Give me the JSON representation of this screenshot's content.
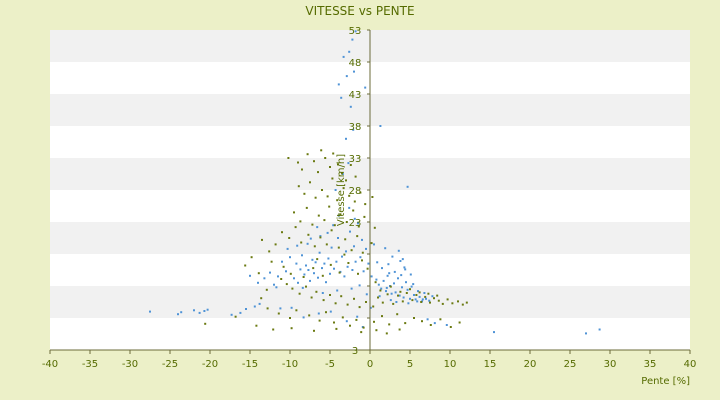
{
  "chart_data": {
    "type": "scatter",
    "title": "VITESSE vs PENTE",
    "xlabel": "Pente [%]",
    "ylabel": "Vitesse [km/h]",
    "xlim": [
      -40,
      40
    ],
    "ylim": [
      3,
      53
    ],
    "x_ticks": [
      -40,
      -35,
      -30,
      -25,
      -20,
      -15,
      -10,
      -5,
      0,
      5,
      10,
      15,
      20,
      25,
      30,
      35,
      40
    ],
    "y_ticks": [
      3,
      8,
      13,
      18,
      23,
      28,
      33,
      38,
      43,
      48,
      53
    ],
    "y_tick_labels": [
      "3",
      "",
      "",
      "",
      "23",
      "28",
      "33",
      "38",
      "43",
      "48",
      "53"
    ],
    "grid": "horizontal alternating bands",
    "legend": "none",
    "series": [
      {
        "color": "#4f93d6",
        "points": [
          [
            -27.5,
            9.0
          ],
          [
            -24.0,
            8.6
          ],
          [
            -23.6,
            8.9
          ],
          [
            -22.0,
            9.2
          ],
          [
            -21.3,
            8.8
          ],
          [
            -20.7,
            9.1
          ],
          [
            -20.3,
            9.3
          ],
          [
            -17.3,
            8.5
          ],
          [
            -16.2,
            8.8
          ],
          [
            -15.5,
            9.4
          ],
          [
            -14.4,
            9.8
          ],
          [
            -13.8,
            10.2
          ],
          [
            -11.2,
            9.5
          ],
          [
            -9.8,
            9.6
          ],
          [
            -15.0,
            14.6
          ],
          [
            -14.0,
            13.5
          ],
          [
            -13.2,
            14.2
          ],
          [
            -12.5,
            15.1
          ],
          [
            -12.0,
            13.2
          ],
          [
            -11.5,
            14.5
          ],
          [
            -11.0,
            16.8
          ],
          [
            -10.5,
            15.3
          ],
          [
            -10.0,
            17.5
          ],
          [
            -9.5,
            14.2
          ],
          [
            -9.2,
            16.5
          ],
          [
            -9.0,
            13.5
          ],
          [
            -8.7,
            15.6
          ],
          [
            -8.5,
            17.8
          ],
          [
            -8.2,
            14.8
          ],
          [
            -8.0,
            16.2
          ],
          [
            -7.7,
            15.5
          ],
          [
            -7.5,
            13.8
          ],
          [
            -7.2,
            17.1
          ],
          [
            -7.0,
            15.0
          ],
          [
            -6.8,
            16.7
          ],
          [
            -6.5,
            14.3
          ],
          [
            -6.3,
            18.2
          ],
          [
            -6.0,
            15.8
          ],
          [
            -5.7,
            16.5
          ],
          [
            -5.5,
            13.6
          ],
          [
            -5.2,
            17.3
          ],
          [
            -5.0,
            14.9
          ],
          [
            -4.8,
            19.0
          ],
          [
            -4.5,
            15.7
          ],
          [
            -4.2,
            16.8
          ],
          [
            -4.0,
            20.5
          ],
          [
            -3.7,
            15.2
          ],
          [
            -3.5,
            17.6
          ],
          [
            -3.2,
            14.5
          ],
          [
            -3.0,
            18.4
          ],
          [
            -2.8,
            16.0
          ],
          [
            -2.5,
            21.5
          ],
          [
            -2.2,
            15.5
          ],
          [
            -2.0,
            19.2
          ],
          [
            -1.8,
            16.8
          ],
          [
            -1.5,
            22.8
          ],
          [
            -1.2,
            17.5
          ],
          [
            -1.0,
            20.2
          ],
          [
            -0.8,
            15.3
          ],
          [
            -0.5,
            18.8
          ],
          [
            -0.2,
            16.5
          ],
          [
            0.2,
            14.5
          ],
          [
            0.5,
            19.5
          ],
          [
            -5.3,
            21.3
          ],
          [
            -4.6,
            22.5
          ],
          [
            -3.9,
            24.0
          ],
          [
            -2.6,
            25.2
          ],
          [
            -1.9,
            23.5
          ],
          [
            -6.2,
            20.8
          ],
          [
            -7.8,
            19.6
          ],
          [
            -4.3,
            28.0
          ],
          [
            -3.4,
            30.5
          ],
          [
            -2.7,
            32.2
          ],
          [
            -3.0,
            36.0
          ],
          [
            -2.1,
            37.4
          ],
          [
            -2.4,
            41.0
          ],
          [
            -3.6,
            42.4
          ],
          [
            -3.9,
            44.5
          ],
          [
            -2.9,
            45.8
          ],
          [
            -2.0,
            46.5
          ],
          [
            -3.3,
            48.8
          ],
          [
            -2.6,
            49.6
          ],
          [
            -2.2,
            51.5
          ],
          [
            -1.8,
            52.8
          ],
          [
            -0.6,
            44.0
          ],
          [
            1.3,
            38.0
          ],
          [
            4.7,
            28.5
          ],
          [
            0.8,
            14.0
          ],
          [
            1.1,
            13.2
          ],
          [
            1.4,
            12.6
          ],
          [
            1.7,
            13.8
          ],
          [
            2.0,
            12.2
          ],
          [
            2.2,
            14.6
          ],
          [
            2.5,
            13.0
          ],
          [
            2.7,
            11.8
          ],
          [
            3.0,
            13.4
          ],
          [
            3.2,
            12.0
          ],
          [
            3.5,
            14.2
          ],
          [
            3.7,
            11.5
          ],
          [
            4.0,
            12.8
          ],
          [
            4.2,
            11.2
          ],
          [
            4.5,
            13.6
          ],
          [
            4.7,
            12.4
          ],
          [
            5.0,
            11.0
          ],
          [
            5.2,
            12.9
          ],
          [
            5.5,
            11.6
          ],
          [
            5.7,
            10.9
          ],
          [
            6.0,
            12.2
          ],
          [
            6.2,
            11.3
          ],
          [
            6.5,
            10.6
          ],
          [
            6.8,
            11.9
          ],
          [
            7.0,
            11.0
          ],
          [
            7.4,
            10.7
          ],
          [
            7.8,
            11.4
          ],
          [
            1.5,
            15.8
          ],
          [
            2.3,
            16.4
          ],
          [
            3.1,
            15.2
          ],
          [
            3.8,
            16.9
          ],
          [
            4.4,
            15.6
          ],
          [
            5.1,
            14.8
          ],
          [
            2.8,
            17.6
          ],
          [
            3.6,
            18.5
          ],
          [
            4.1,
            17.2
          ],
          [
            1.9,
            18.9
          ],
          [
            0.9,
            16.7
          ],
          [
            1.2,
            11.4
          ],
          [
            2.6,
            10.8
          ],
          [
            3.3,
            10.5
          ],
          [
            4.8,
            10.3
          ],
          [
            5.9,
            10.6
          ],
          [
            6.6,
            10.9
          ],
          [
            2.1,
            12.7
          ],
          [
            3.9,
            14.7
          ],
          [
            5.4,
            13.3
          ],
          [
            4.3,
            15.9
          ],
          [
            2.4,
            15.0
          ],
          [
            7.2,
            7.8
          ],
          [
            8.1,
            7.2
          ],
          [
            9.6,
            6.9
          ],
          [
            15.5,
            5.8
          ],
          [
            27.0,
            5.6
          ],
          [
            28.7,
            6.2
          ],
          [
            -9.1,
            19.3
          ],
          [
            -10.3,
            18.8
          ],
          [
            -7.4,
            20.4
          ],
          [
            -6.6,
            22.2
          ],
          [
            -8.4,
            12.7
          ],
          [
            -11.7,
            12.8
          ],
          [
            -5.9,
            11.9
          ],
          [
            -4.1,
            12.3
          ],
          [
            -2.3,
            12.6
          ],
          [
            -1.3,
            13.1
          ],
          [
            -0.4,
            11.7
          ],
          [
            0.1,
            9.6
          ],
          [
            -1.6,
            8.2
          ],
          [
            -2.9,
            7.5
          ],
          [
            -4.9,
            9.0
          ],
          [
            -6.4,
            8.7
          ],
          [
            -8.3,
            8.1
          ],
          [
            -0.9,
            6.6
          ]
        ]
      },
      {
        "color": "#6b7a12",
        "points": [
          [
            -10.2,
            33.0
          ],
          [
            -9.0,
            32.3
          ],
          [
            -8.5,
            31.2
          ],
          [
            -7.8,
            33.6
          ],
          [
            -7.0,
            32.5
          ],
          [
            -6.5,
            30.8
          ],
          [
            -6.1,
            34.2
          ],
          [
            -5.6,
            33.0
          ],
          [
            -5.0,
            31.6
          ],
          [
            -4.6,
            33.7
          ],
          [
            -4.0,
            32.0
          ],
          [
            -3.5,
            30.6
          ],
          [
            -3.0,
            29.5
          ],
          [
            -2.4,
            31.9
          ],
          [
            -1.8,
            30.1
          ],
          [
            -8.9,
            28.6
          ],
          [
            -8.2,
            27.4
          ],
          [
            -7.5,
            29.2
          ],
          [
            -6.8,
            26.8
          ],
          [
            -6.0,
            28.0
          ],
          [
            -5.3,
            27.0
          ],
          [
            -4.7,
            29.8
          ],
          [
            -4.1,
            26.4
          ],
          [
            -3.3,
            28.3
          ],
          [
            -2.6,
            27.1
          ],
          [
            -1.9,
            26.2
          ],
          [
            -1.2,
            27.6
          ],
          [
            -0.6,
            25.8
          ],
          [
            0.3,
            26.9
          ],
          [
            -9.5,
            24.5
          ],
          [
            -8.7,
            23.1
          ],
          [
            -7.9,
            25.2
          ],
          [
            -7.2,
            22.6
          ],
          [
            -6.4,
            24.0
          ],
          [
            -5.7,
            23.3
          ],
          [
            -5.1,
            25.4
          ],
          [
            -4.4,
            22.5
          ],
          [
            -3.7,
            24.2
          ],
          [
            -2.9,
            23.0
          ],
          [
            -2.1,
            24.8
          ],
          [
            -1.4,
            22.3
          ],
          [
            -0.7,
            23.8
          ],
          [
            0.6,
            22.1
          ],
          [
            -11.0,
            21.4
          ],
          [
            -10.1,
            20.5
          ],
          [
            -9.3,
            22.2
          ],
          [
            -8.6,
            19.8
          ],
          [
            -7.7,
            21.0
          ],
          [
            -6.9,
            19.2
          ],
          [
            -6.2,
            20.6
          ],
          [
            -5.4,
            19.5
          ],
          [
            -4.8,
            21.7
          ],
          [
            -3.9,
            19.0
          ],
          [
            -3.1,
            20.3
          ],
          [
            -2.3,
            18.6
          ],
          [
            -1.6,
            20.8
          ],
          [
            -0.9,
            18.2
          ],
          [
            0.2,
            19.7
          ],
          [
            -13.5,
            20.2
          ],
          [
            -12.6,
            18.4
          ],
          [
            -11.8,
            19.5
          ],
          [
            -14.8,
            17.5
          ],
          [
            -15.6,
            16.2
          ],
          [
            -13.9,
            15.0
          ],
          [
            -12.3,
            16.8
          ],
          [
            -11.1,
            14.1
          ],
          [
            -10.4,
            13.3
          ],
          [
            -9.7,
            12.6
          ],
          [
            -8.8,
            11.8
          ],
          [
            -8.0,
            12.9
          ],
          [
            -7.3,
            11.2
          ],
          [
            -6.7,
            12.1
          ],
          [
            -5.8,
            10.8
          ],
          [
            -5.0,
            11.6
          ],
          [
            -4.3,
            10.3
          ],
          [
            -3.6,
            11.4
          ],
          [
            -2.8,
            10.1
          ],
          [
            -2.0,
            11.0
          ],
          [
            -1.3,
            9.7
          ],
          [
            -0.5,
            10.5
          ],
          [
            0.4,
            9.8
          ],
          [
            1.0,
            11.2
          ],
          [
            1.6,
            10.4
          ],
          [
            2.2,
            11.7
          ],
          [
            2.9,
            10.2
          ],
          [
            3.5,
            11.5
          ],
          [
            4.1,
            10.6
          ],
          [
            4.6,
            11.9
          ],
          [
            5.3,
            10.8
          ],
          [
            5.8,
            11.6
          ],
          [
            6.4,
            10.5
          ],
          [
            6.9,
            11.3
          ],
          [
            7.5,
            10.4
          ],
          [
            8.0,
            11.1
          ],
          [
            8.6,
            10.7
          ],
          [
            9.1,
            10.2
          ],
          [
            9.7,
            10.9
          ],
          [
            10.3,
            10.3
          ],
          [
            11.0,
            10.6
          ],
          [
            11.6,
            10.1
          ],
          [
            12.1,
            10.4
          ],
          [
            1.3,
            12.3
          ],
          [
            2.6,
            12.9
          ],
          [
            3.8,
            12.1
          ],
          [
            5.0,
            12.5
          ],
          [
            6.2,
            12.0
          ],
          [
            7.3,
            11.8
          ],
          [
            8.4,
            11.5
          ],
          [
            -12.8,
            9.5
          ],
          [
            -11.4,
            8.7
          ],
          [
            -10.0,
            8.0
          ],
          [
            -9.2,
            9.2
          ],
          [
            -7.6,
            8.4
          ],
          [
            -6.3,
            7.6
          ],
          [
            -5.5,
            8.9
          ],
          [
            -4.5,
            7.3
          ],
          [
            -3.4,
            8.1
          ],
          [
            -2.5,
            6.8
          ],
          [
            -1.7,
            7.7
          ],
          [
            -0.8,
            6.5
          ],
          [
            0.5,
            7.4
          ],
          [
            1.5,
            8.3
          ],
          [
            2.4,
            7.0
          ],
          [
            3.4,
            8.6
          ],
          [
            4.4,
            7.2
          ],
          [
            5.5,
            8.0
          ],
          [
            6.5,
            7.5
          ],
          [
            7.6,
            6.9
          ],
          [
            8.8,
            7.8
          ],
          [
            10.1,
            6.6
          ],
          [
            11.2,
            7.3
          ],
          [
            -20.6,
            7.1
          ],
          [
            -16.8,
            8.2
          ],
          [
            -14.2,
            6.8
          ],
          [
            -12.1,
            6.2
          ],
          [
            -9.8,
            6.4
          ],
          [
            -7.0,
            6.0
          ],
          [
            -4.2,
            6.3
          ],
          [
            -1.1,
            5.8
          ],
          [
            0.8,
            6.1
          ],
          [
            2.1,
            5.6
          ],
          [
            3.7,
            6.2
          ],
          [
            -8.3,
            14.4
          ],
          [
            -7.1,
            15.8
          ],
          [
            -5.9,
            14.6
          ],
          [
            -4.9,
            16.3
          ],
          [
            -3.8,
            15.1
          ],
          [
            -2.7,
            16.6
          ],
          [
            -1.5,
            14.9
          ],
          [
            -0.3,
            15.7
          ],
          [
            -10.8,
            16.0
          ],
          [
            -9.9,
            14.9
          ],
          [
            -6.6,
            17.2
          ],
          [
            -3.2,
            17.9
          ],
          [
            -1.0,
            17.0
          ],
          [
            0.7,
            13.6
          ],
          [
            -12.9,
            12.4
          ],
          [
            -13.6,
            11.1
          ]
        ]
      }
    ]
  }
}
